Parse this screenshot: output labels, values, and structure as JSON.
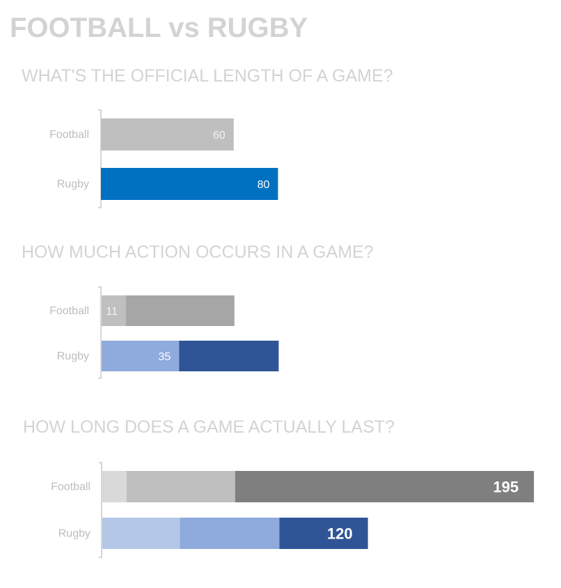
{
  "title": "FOOTBALL vs RUGBY",
  "colors": {
    "title_text": "#d3d3d3",
    "subtitle_text": "#d3d3d3",
    "category_text": "#bdbdbd",
    "axis_line": "#c8c8c8",
    "label_light": "#ffffff"
  },
  "chart_data": [
    {
      "type": "bar",
      "orientation": "horizontal",
      "title": "WHAT'S THE OFFICIAL LENGTH OF A GAME?",
      "categories": [
        "Football",
        "Rugby"
      ],
      "rows": [
        {
          "category": "Football",
          "segments": [
            {
              "value": 60,
              "color": "#bfbfbf",
              "label": "60",
              "label_color": "#f2f2f2"
            }
          ]
        },
        {
          "category": "Rugby",
          "segments": [
            {
              "value": 80,
              "color": "#0070c0",
              "label": "80",
              "label_color": "#ffffff"
            }
          ]
        }
      ]
    },
    {
      "type": "bar",
      "orientation": "horizontal",
      "stacked": true,
      "title": "HOW MUCH ACTION OCCURS IN A GAME?",
      "categories": [
        "Football",
        "Rugby"
      ],
      "rows": [
        {
          "category": "Football",
          "segments": [
            {
              "value": 11,
              "color": "#bfbfbf",
              "label": "11",
              "label_color": "#f2f2f2"
            },
            {
              "value": 49,
              "color": "#a6a6a6",
              "label": ""
            }
          ]
        },
        {
          "category": "Rugby",
          "segments": [
            {
              "value": 35,
              "color": "#8faadc",
              "label": "35",
              "label_color": "#ffffff"
            },
            {
              "value": 45,
              "color": "#2f5597",
              "label": ""
            }
          ]
        }
      ]
    },
    {
      "type": "bar",
      "orientation": "horizontal",
      "stacked": true,
      "title": "HOW LONG DOES A GAME ACTUALLY LAST?",
      "categories": [
        "Football",
        "Rugby"
      ],
      "rows": [
        {
          "category": "Football",
          "segments": [
            {
              "value": 11,
              "color": "#d9d9d9",
              "label": ""
            },
            {
              "value": 49,
              "color": "#bfbfbf",
              "label": ""
            },
            {
              "value": 135,
              "color": "#7f7f7f",
              "label": "195",
              "label_color": "#ffffff",
              "bold": true
            }
          ]
        },
        {
          "category": "Rugby",
          "segments": [
            {
              "value": 35,
              "color": "#b4c7e7",
              "label": ""
            },
            {
              "value": 45,
              "color": "#8faadc",
              "label": ""
            },
            {
              "value": 40,
              "color": "#2f5597",
              "label": "120",
              "label_color": "#ffffff",
              "bold": true
            }
          ]
        }
      ]
    }
  ]
}
